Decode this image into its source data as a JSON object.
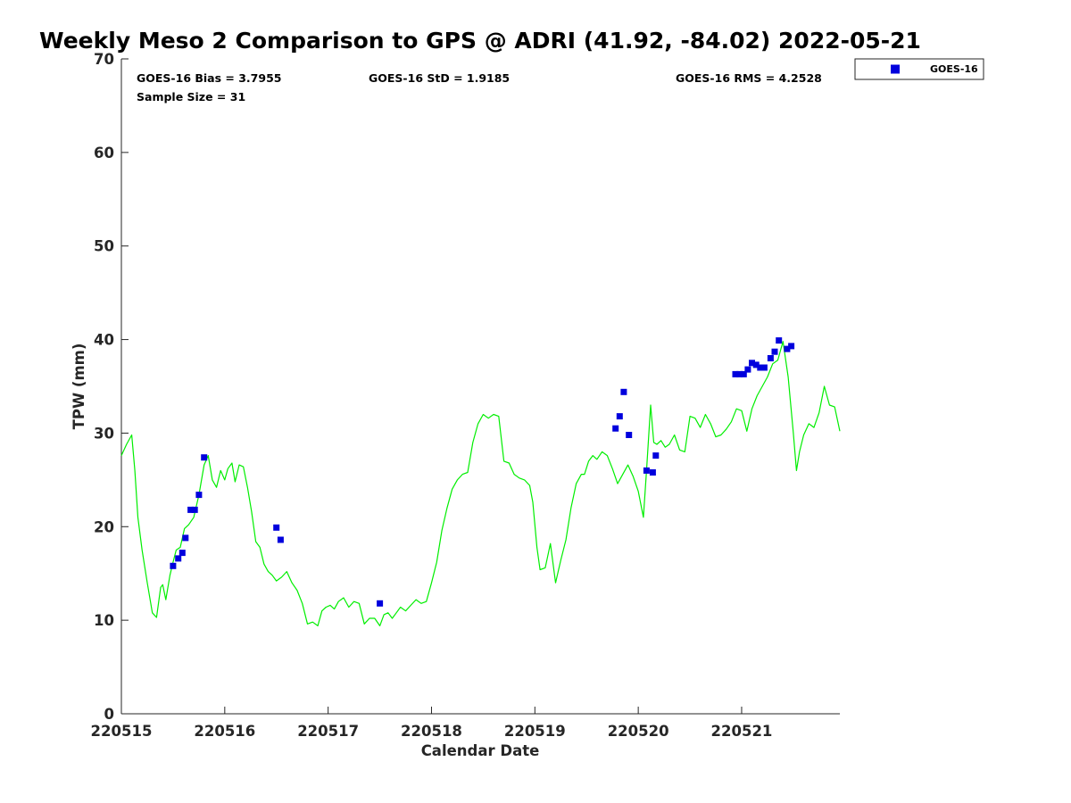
{
  "chart_data": {
    "type": "scatter",
    "title": "Weekly Meso 2 Comparison to GPS @ ADRI (41.92, -84.02) 2022-05-21",
    "xlabel": "Calendar Date",
    "ylabel": "TPW (mm)",
    "xlim": [
      0,
      6.95
    ],
    "ylim": [
      0,
      70
    ],
    "yticks": [
      0,
      10,
      20,
      30,
      40,
      50,
      60,
      70
    ],
    "xticks": [
      {
        "v": 0,
        "label": "220515"
      },
      {
        "v": 1,
        "label": "220516"
      },
      {
        "v": 2,
        "label": "220517"
      },
      {
        "v": 3,
        "label": "220518"
      },
      {
        "v": 4,
        "label": "220519"
      },
      {
        "v": 5,
        "label": "220520"
      },
      {
        "v": 6,
        "label": "220521"
      }
    ],
    "grid": false,
    "legend": {
      "position": "top-right",
      "entries": [
        "GOES-16"
      ]
    },
    "stats": {
      "bias": "GOES-16 Bias = 3.7955",
      "std": "GOES-16 StD = 1.9185",
      "rms": "GOES-16 RMS = 4.2528",
      "sample": "Sample Size = 31"
    },
    "series": [
      {
        "name": "GOES-16",
        "kind": "points",
        "color": "#0000dd",
        "x": [
          0.5,
          0.55,
          0.59,
          0.62,
          0.67,
          0.71,
          0.75,
          0.8,
          1.5,
          1.54,
          2.5,
          4.78,
          4.82,
          4.86,
          4.91,
          5.08,
          5.14,
          5.17,
          5.94,
          5.98,
          6.02,
          6.06,
          6.1,
          6.14,
          6.18,
          6.22,
          6.28,
          6.32,
          6.36,
          6.44,
          6.48
        ],
        "y": [
          15.8,
          16.6,
          17.2,
          18.8,
          21.8,
          21.8,
          23.4,
          27.4,
          19.9,
          18.6,
          11.8,
          30.5,
          31.8,
          34.4,
          29.8,
          26.0,
          25.8,
          27.6,
          36.3,
          36.3,
          36.3,
          36.8,
          37.5,
          37.3,
          37.0,
          37.0,
          38.0,
          38.7,
          39.9,
          39.0,
          39.3
        ]
      },
      {
        "name": "GPS",
        "kind": "line",
        "color": "#00ee00",
        "x": [
          0.0,
          0.05,
          0.1,
          0.13,
          0.16,
          0.2,
          0.25,
          0.3,
          0.34,
          0.38,
          0.4,
          0.43,
          0.47,
          0.5,
          0.53,
          0.57,
          0.61,
          0.65,
          0.7,
          0.75,
          0.8,
          0.84,
          0.88,
          0.92,
          0.96,
          1.0,
          1.03,
          1.07,
          1.1,
          1.14,
          1.18,
          1.22,
          1.26,
          1.3,
          1.34,
          1.38,
          1.42,
          1.46,
          1.5,
          1.55,
          1.6,
          1.65,
          1.7,
          1.75,
          1.8,
          1.85,
          1.9,
          1.94,
          1.98,
          2.02,
          2.06,
          2.1,
          2.15,
          2.2,
          2.25,
          2.3,
          2.35,
          2.4,
          2.45,
          2.5,
          2.54,
          2.58,
          2.62,
          2.66,
          2.7,
          2.75,
          2.8,
          2.85,
          2.9,
          2.95,
          3.0,
          3.05,
          3.1,
          3.15,
          3.2,
          3.25,
          3.3,
          3.35,
          3.4,
          3.45,
          3.5,
          3.55,
          3.6,
          3.65,
          3.7,
          3.75,
          3.8,
          3.85,
          3.9,
          3.95,
          3.98,
          4.0,
          4.02,
          4.05,
          4.1,
          4.15,
          4.2,
          4.25,
          4.3,
          4.35,
          4.4,
          4.45,
          4.48,
          4.52,
          4.56,
          4.6,
          4.65,
          4.7,
          4.75,
          4.8,
          4.85,
          4.9,
          4.95,
          5.0,
          5.05,
          5.08,
          5.12,
          5.15,
          5.18,
          5.22,
          5.26,
          5.3,
          5.35,
          5.4,
          5.45,
          5.5,
          5.55,
          5.6,
          5.65,
          5.7,
          5.75,
          5.8,
          5.85,
          5.9,
          5.95,
          6.0,
          6.05,
          6.1,
          6.15,
          6.2,
          6.25,
          6.3,
          6.35,
          6.4,
          6.45,
          6.5,
          6.53,
          6.56,
          6.6,
          6.65,
          6.7,
          6.75,
          6.8,
          6.85,
          6.9,
          6.95
        ],
        "y": [
          27.6,
          28.8,
          29.8,
          26.0,
          21.0,
          17.5,
          14.0,
          10.8,
          10.3,
          13.5,
          13.8,
          12.2,
          14.8,
          16.2,
          17.5,
          17.8,
          19.8,
          20.2,
          21.0,
          23.4,
          26.6,
          27.6,
          25.0,
          24.2,
          26.0,
          25.0,
          26.2,
          26.8,
          24.8,
          26.6,
          26.4,
          24.2,
          21.6,
          18.4,
          17.8,
          16.0,
          15.2,
          14.8,
          14.2,
          14.6,
          15.2,
          14.0,
          13.2,
          11.8,
          9.6,
          9.8,
          9.4,
          11.0,
          11.4,
          11.6,
          11.2,
          12.0,
          12.4,
          11.4,
          12.0,
          11.8,
          9.6,
          10.2,
          10.2,
          9.4,
          10.6,
          10.8,
          10.2,
          10.8,
          11.4,
          11.0,
          11.6,
          12.2,
          11.8,
          12.0,
          14.0,
          16.2,
          19.6,
          22.0,
          24.0,
          25.0,
          25.6,
          25.8,
          29.0,
          31.0,
          32.0,
          31.6,
          32.0,
          31.8,
          27.0,
          26.8,
          25.6,
          25.2,
          25.0,
          24.4,
          22.6,
          20.2,
          17.8,
          15.4,
          15.6,
          18.2,
          14.0,
          16.4,
          18.6,
          22.0,
          24.6,
          25.6,
          25.6,
          27.0,
          27.6,
          27.2,
          28.0,
          27.6,
          26.2,
          24.6,
          25.6,
          26.6,
          25.4,
          23.8,
          21.0,
          26.0,
          33.0,
          29.0,
          28.8,
          29.2,
          28.5,
          28.8,
          29.8,
          28.2,
          28.0,
          31.8,
          31.6,
          30.6,
          32.0,
          31.0,
          29.6,
          29.8,
          30.4,
          31.2,
          32.6,
          32.4,
          30.2,
          32.6,
          34.0,
          35.0,
          36.0,
          37.4,
          37.8,
          39.8,
          36.0,
          30.0,
          26.0,
          28.0,
          29.8,
          31.0,
          30.6,
          32.2,
          35.0,
          33.0,
          32.8,
          30.2
        ]
      }
    ]
  }
}
